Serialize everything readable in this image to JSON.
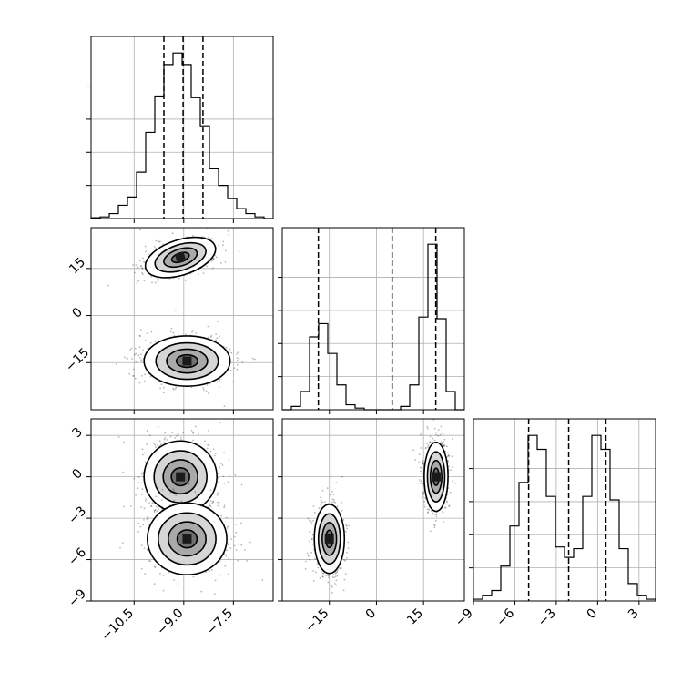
{
  "chart_data": {
    "type": "corner",
    "grid": true,
    "parameters": [
      {
        "range": [
          -11.8,
          -6.3
        ],
        "ticks": [
          -10.5,
          -9.0,
          -7.5
        ],
        "tick_labels": [
          "−10.5",
          "−9.0",
          "−7.5"
        ]
      },
      {
        "range": [
          -30,
          28
        ],
        "ticks": [
          -15,
          0,
          15
        ],
        "tick_labels": [
          "−15",
          "0",
          "15"
        ]
      },
      {
        "range": [
          -9,
          4.2
        ],
        "ticks": [
          -9,
          -6,
          -3,
          0,
          3
        ],
        "tick_labels": [
          "−9",
          "−6",
          "−3",
          "0",
          "3"
        ]
      }
    ],
    "histograms": [
      {
        "param": 0,
        "bin_edges": [
          -11.8,
          -11.525,
          -11.25,
          -10.975,
          -10.7,
          -10.425,
          -10.15,
          -9.875,
          -9.6,
          -9.325,
          -9.05,
          -8.775,
          -8.5,
          -8.225,
          -7.95,
          -7.675,
          -7.4,
          -7.125,
          -6.85,
          -6.575,
          -6.3
        ],
        "counts": [
          0.005,
          0.01,
          0.03,
          0.08,
          0.13,
          0.28,
          0.52,
          0.74,
          0.93,
          1.0,
          0.93,
          0.73,
          0.56,
          0.3,
          0.2,
          0.12,
          0.06,
          0.03,
          0.01,
          0.0
        ],
        "quantiles": [
          -9.6,
          -9.02,
          -8.42
        ]
      },
      {
        "param": 1,
        "bin_edges": [
          -30,
          -27.1,
          -24.2,
          -21.3,
          -18.4,
          -15.5,
          -12.6,
          -9.7,
          -6.8,
          -3.9,
          -1.0,
          1.9,
          4.8,
          7.7,
          10.6,
          13.5,
          16.4,
          19.3,
          22.2,
          25.1,
          28.0
        ],
        "counts": [
          0.0,
          0.02,
          0.11,
          0.44,
          0.52,
          0.34,
          0.15,
          0.03,
          0.01,
          0.0,
          0.0,
          0.0,
          0.0,
          0.02,
          0.15,
          0.56,
          1.0,
          0.55,
          0.11,
          0.0
        ],
        "quantiles": [
          -18.5,
          5.0,
          18.9
        ]
      },
      {
        "param": 2,
        "bin_edges": [
          -9,
          -8.34,
          -7.68,
          -7.02,
          -6.36,
          -5.7,
          -5.04,
          -4.38,
          -3.72,
          -3.06,
          -2.4,
          -1.74,
          -1.08,
          -0.42,
          0.24,
          0.9,
          1.56,
          2.22,
          2.88,
          3.54,
          4.2
        ],
        "counts": [
          0.01,
          0.03,
          0.06,
          0.2,
          0.43,
          0.68,
          0.95,
          0.87,
          0.6,
          0.31,
          0.25,
          0.3,
          0.6,
          0.95,
          0.87,
          0.58,
          0.3,
          0.1,
          0.03,
          0.01
        ],
        "quantiles": [
          -5.0,
          -2.1,
          0.6
        ]
      }
    ],
    "scatter_panels": [
      {
        "x_param": 0,
        "y_param": 1,
        "clusters": [
          {
            "center": [
              -9.1,
              18.5
            ],
            "spread": [
              0.55,
              2.8
            ],
            "rotation_deg": 18,
            "n": 550
          },
          {
            "center": [
              -8.9,
              -14.5
            ],
            "spread": [
              0.65,
              4.0
            ],
            "rotation_deg": 0,
            "n": 650
          }
        ]
      },
      {
        "x_param": 0,
        "y_param": 2,
        "clusters": [
          {
            "center": [
              -9.1,
              0.0
            ],
            "spread": [
              0.55,
              1.3
            ],
            "rotation_deg": 0,
            "n": 650
          },
          {
            "center": [
              -8.9,
              -4.5
            ],
            "spread": [
              0.6,
              1.3
            ],
            "rotation_deg": 0,
            "n": 650
          }
        ]
      },
      {
        "x_param": 1,
        "y_param": 2,
        "clusters": [
          {
            "center": [
              -15.0,
              -4.5
            ],
            "spread": [
              2.4,
              1.25
            ],
            "rotation_deg": 0,
            "n": 650
          },
          {
            "center": [
              19.0,
              0.0
            ],
            "spread": [
              1.9,
              1.25
            ],
            "rotation_deg": 0,
            "n": 650
          }
        ]
      }
    ]
  }
}
